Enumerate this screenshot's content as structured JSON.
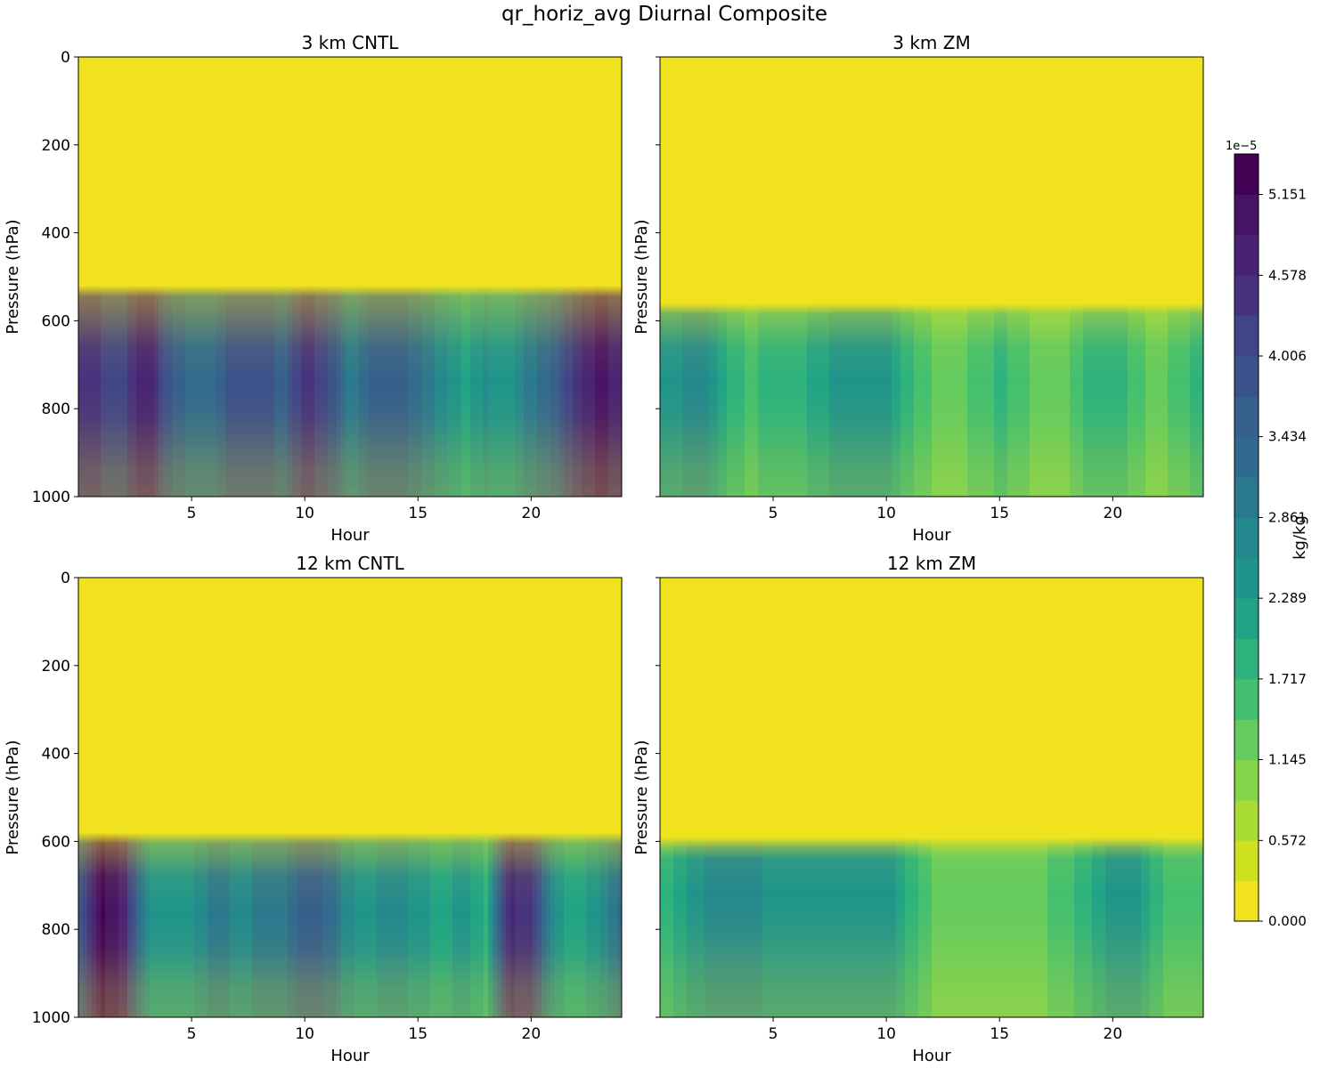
{
  "figure": {
    "title": "qr_horiz_avg Diurnal Composite"
  },
  "colorbar": {
    "label": "kg/kg",
    "exponent": "1e−5",
    "ticks": [
      "0.000",
      "0.572",
      "1.145",
      "1.717",
      "2.289",
      "2.861",
      "3.434",
      "4.006",
      "4.578",
      "5.151"
    ],
    "colors": [
      "#f0e31e",
      "#cde11d",
      "#a8db34",
      "#85d44a",
      "#63cb5f",
      "#44bf70",
      "#2db27d",
      "#20a386",
      "#1f948c",
      "#23888e",
      "#2a788e",
      "#306a8e",
      "#355f8d",
      "#3b518b",
      "#414487",
      "#46327e",
      "#482374",
      "#471365",
      "#440154"
    ]
  },
  "chart_data": [
    {
      "type": "heatmap",
      "title": "3 km CNTL",
      "xlabel": "Hour",
      "ylabel": "Pressure (hPa)",
      "x_ticks": [
        "5",
        "10",
        "15",
        "20"
      ],
      "y_ticks": [
        "0",
        "200",
        "400",
        "600",
        "800",
        "1000"
      ],
      "xlim": [
        0,
        24
      ],
      "ylim": [
        0,
        1000
      ],
      "value_units": "1e-5 kg/kg",
      "rain_top_hPa": 520,
      "peak_level_hPa": 740,
      "peak_intensity_by_hour": [
        [
          0,
          4.6
        ],
        [
          1,
          4.3
        ],
        [
          2,
          4.2
        ],
        [
          3,
          4.9
        ],
        [
          4,
          3.8
        ],
        [
          5,
          3.3
        ],
        [
          6,
          3.4
        ],
        [
          7,
          4.0
        ],
        [
          8,
          3.9
        ],
        [
          9,
          3.6
        ],
        [
          10,
          4.4
        ],
        [
          11,
          4.1
        ],
        [
          12,
          3.0
        ],
        [
          13,
          3.5
        ],
        [
          14,
          3.7
        ],
        [
          15,
          3.2
        ],
        [
          16,
          2.7
        ],
        [
          17,
          2.2
        ],
        [
          18,
          2.6
        ],
        [
          19,
          2.4
        ],
        [
          20,
          3.0
        ],
        [
          21,
          3.5
        ],
        [
          22,
          4.5
        ],
        [
          23,
          4.9
        ],
        [
          24,
          4.8
        ]
      ]
    },
    {
      "type": "heatmap",
      "title": "3 km ZM",
      "xlabel": "Hour",
      "ylabel": "Pressure (hPa)",
      "x_ticks": [
        "5",
        "10",
        "15",
        "20"
      ],
      "y_ticks": [
        "0",
        "200",
        "400",
        "600",
        "800",
        "1000"
      ],
      "xlim": [
        0,
        24
      ],
      "ylim": [
        0,
        1000
      ],
      "value_units": "1e-5 kg/kg",
      "rain_top_hPa": 560,
      "peak_level_hPa": 740,
      "peak_intensity_by_hour": [
        [
          0,
          2.3
        ],
        [
          1,
          2.6
        ],
        [
          2,
          2.7
        ],
        [
          3,
          2.0
        ],
        [
          4,
          1.6
        ],
        [
          5,
          1.9
        ],
        [
          6,
          1.8
        ],
        [
          7,
          2.2
        ],
        [
          8,
          2.4
        ],
        [
          9,
          2.3
        ],
        [
          10,
          2.5
        ],
        [
          11,
          1.8
        ],
        [
          12,
          1.4
        ],
        [
          13,
          1.3
        ],
        [
          14,
          1.5
        ],
        [
          15,
          1.8
        ],
        [
          16,
          1.5
        ],
        [
          17,
          1.2
        ],
        [
          18,
          1.4
        ],
        [
          19,
          1.9
        ],
        [
          20,
          2.0
        ],
        [
          21,
          1.5
        ],
        [
          22,
          1.3
        ],
        [
          23,
          1.6
        ],
        [
          24,
          1.9
        ]
      ]
    },
    {
      "type": "heatmap",
      "title": "12 km CNTL",
      "xlabel": "Hour",
      "ylabel": "Pressure (hPa)",
      "x_ticks": [
        "5",
        "10",
        "15",
        "20"
      ],
      "y_ticks": [
        "0",
        "200",
        "400",
        "600",
        "800",
        "1000"
      ],
      "xlim": [
        0,
        24
      ],
      "ylim": [
        0,
        1000
      ],
      "value_units": "1e-5 kg/kg",
      "rain_top_hPa": 580,
      "peak_level_hPa": 760,
      "peak_intensity_by_hour": [
        [
          0,
          3.8
        ],
        [
          1,
          5.2
        ],
        [
          2,
          4.8
        ],
        [
          3,
          2.6
        ],
        [
          4,
          2.4
        ],
        [
          5,
          2.5
        ],
        [
          6,
          3.0
        ],
        [
          7,
          2.8
        ],
        [
          8,
          2.9
        ],
        [
          9,
          3.0
        ],
        [
          10,
          3.6
        ],
        [
          11,
          3.4
        ],
        [
          12,
          2.6
        ],
        [
          13,
          2.5
        ],
        [
          14,
          2.8
        ],
        [
          15,
          2.4
        ],
        [
          16,
          2.2
        ],
        [
          17,
          2.4
        ],
        [
          18,
          2.0
        ],
        [
          19,
          4.6
        ],
        [
          20,
          4.5
        ],
        [
          21,
          2.5
        ],
        [
          22,
          2.1
        ],
        [
          23,
          2.5
        ],
        [
          24,
          3.4
        ]
      ]
    },
    {
      "type": "heatmap",
      "title": "12 km ZM",
      "xlabel": "Hour",
      "ylabel": "Pressure (hPa)",
      "x_ticks": [
        "5",
        "10",
        "15",
        "20"
      ],
      "y_ticks": [
        "0",
        "200",
        "400",
        "600",
        "800",
        "1000"
      ],
      "xlim": [
        0,
        24
      ],
      "ylim": [
        0,
        1000
      ],
      "value_units": "1e-5 kg/kg",
      "rain_top_hPa": 590,
      "peak_level_hPa": 720,
      "peak_intensity_by_hour": [
        [
          0,
          1.8
        ],
        [
          1,
          2.2
        ],
        [
          2,
          2.6
        ],
        [
          3,
          2.7
        ],
        [
          4,
          2.7
        ],
        [
          5,
          2.5
        ],
        [
          6,
          2.4
        ],
        [
          7,
          2.3
        ],
        [
          8,
          2.4
        ],
        [
          9,
          2.5
        ],
        [
          10,
          2.5
        ],
        [
          11,
          1.9
        ],
        [
          12,
          1.4
        ],
        [
          13,
          1.3
        ],
        [
          14,
          1.2
        ],
        [
          15,
          1.2
        ],
        [
          16,
          1.3
        ],
        [
          17,
          1.4
        ],
        [
          18,
          1.6
        ],
        [
          19,
          1.9
        ],
        [
          20,
          2.5
        ],
        [
          21,
          2.5
        ],
        [
          22,
          1.8
        ],
        [
          23,
          1.5
        ],
        [
          24,
          1.5
        ]
      ]
    }
  ]
}
